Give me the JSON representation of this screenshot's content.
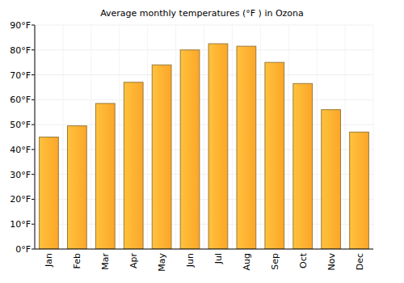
{
  "chart_data": {
    "type": "bar",
    "title": "Average monthly temperatures (°F ) in Ozona",
    "categories": [
      "Jan",
      "Feb",
      "Mar",
      "Apr",
      "May",
      "Jun",
      "Jul",
      "Aug",
      "Sep",
      "Oct",
      "Nov",
      "Dec"
    ],
    "values": [
      45,
      49.5,
      58.5,
      67,
      74,
      80,
      82.5,
      81.5,
      75,
      66.5,
      56,
      47
    ],
    "color": "#fca628",
    "ylim": [
      0,
      90
    ],
    "yticks": [
      {
        "value": 0,
        "label": "0°F"
      },
      {
        "value": 10,
        "label": "10°F"
      },
      {
        "value": 20,
        "label": "20°F"
      },
      {
        "value": 30,
        "label": "30°F"
      },
      {
        "value": 40,
        "label": "40°F"
      },
      {
        "value": 50,
        "label": "50°F"
      },
      {
        "value": 60,
        "label": "60°F"
      },
      {
        "value": 70,
        "label": "70°F"
      },
      {
        "value": 80,
        "label": "80°F"
      },
      {
        "value": 90,
        "label": "90°F"
      }
    ],
    "grid": true
  }
}
